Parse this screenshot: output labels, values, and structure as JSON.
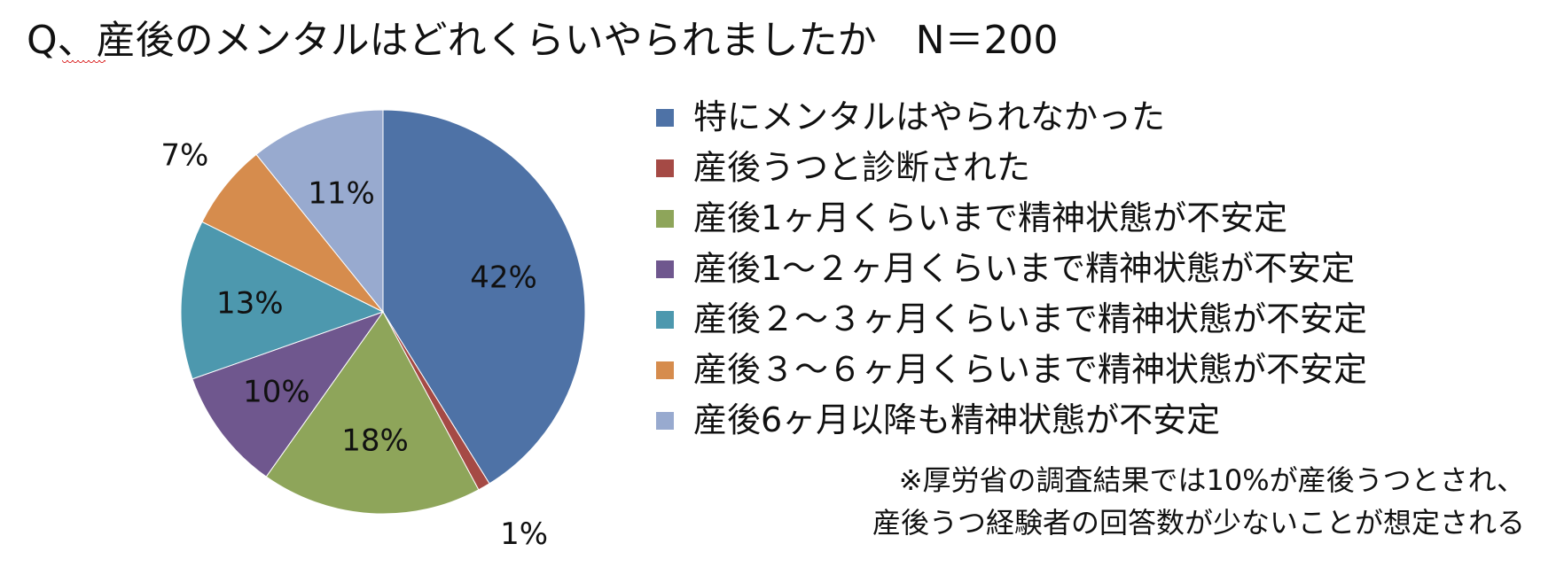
{
  "title": {
    "q": "Q",
    "text": "、産後のメンタルはどれくらいやられましたか　N＝200"
  },
  "chart_data": {
    "type": "pie",
    "slices": [
      {
        "label": "特にメンタルはやられなかった",
        "value": 42,
        "display": "42%",
        "color": "#4E72A6"
      },
      {
        "label": "産後うつと診断された",
        "value": 1,
        "display": "1%",
        "color": "#A54A45"
      },
      {
        "label": "産後1ヶ月くらいまで精神状態が不安定",
        "value": 18,
        "display": "18%",
        "color": "#8EA55A"
      },
      {
        "label": "産後1～２ヶ月くらいまで精神状態が不安定",
        "value": 10,
        "display": "10%",
        "color": "#6F578E"
      },
      {
        "label": "産後２～３ヶ月くらいまで精神状態が不安定",
        "value": 13,
        "display": "13%",
        "color": "#4D98AE"
      },
      {
        "label": "産後３～６ヶ月くらいまで精神状態が不安定",
        "value": 7,
        "display": "7%",
        "color": "#D68C4D"
      },
      {
        "label": "産後6ヶ月以降も精神状態が不安定",
        "value": 11,
        "display": "11%",
        "color": "#98AACF"
      }
    ],
    "legend_position": "right"
  },
  "note": {
    "line1": "※厚労省の調査結果では10%が産後うつとされ、",
    "line2": "産後うつ経験者の回答数が少ないことが想定される"
  }
}
